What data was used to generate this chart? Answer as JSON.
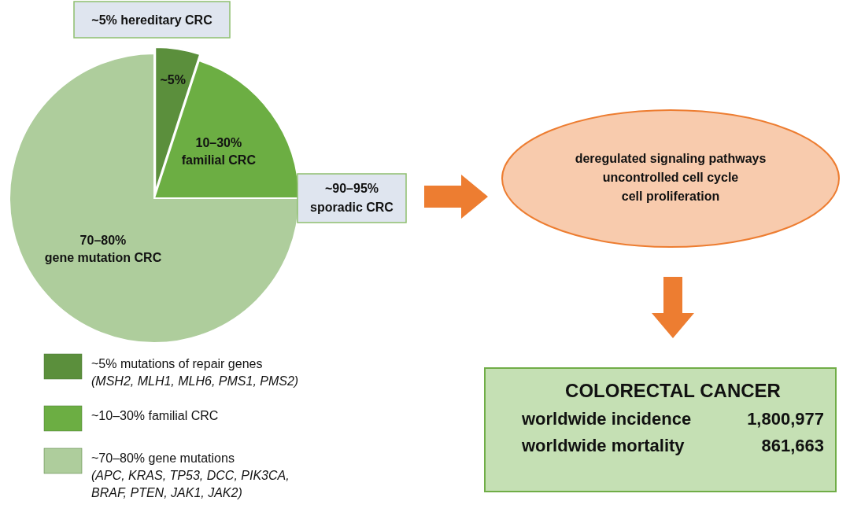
{
  "chart_data": {
    "type": "pie",
    "categories": [
      "~5% mutations of repair genes\n(MSH2, MLH1, MLH6, PMS1, PMS2)",
      "~10–30% familial CRC",
      "~70–80% gene mutations\n(APC, KRAS, TP53, DCC, PIK3CA,\nBRAF, PTEN, JAK1, JAK2)"
    ],
    "values": [
      5,
      20,
      75
    ],
    "colors": [
      "#5b8f3c",
      "#6cae43",
      "#aecd9c"
    ],
    "legend": "bottom",
    "annotations": [
      "~5% hereditary CRC",
      "~90–95%\nsporadic CRC",
      "deregulated signaling pathways\nuncontrolled cell cycle\ncell proliferation",
      "COLORECTAL CANCER",
      "worldwide incidence",
      "1,800,977",
      "worldwide mortality",
      "861,663",
      "~5%",
      "10–30%\nfamilial CRC",
      "70–80%\ngene mutation CRC"
    ]
  }
}
